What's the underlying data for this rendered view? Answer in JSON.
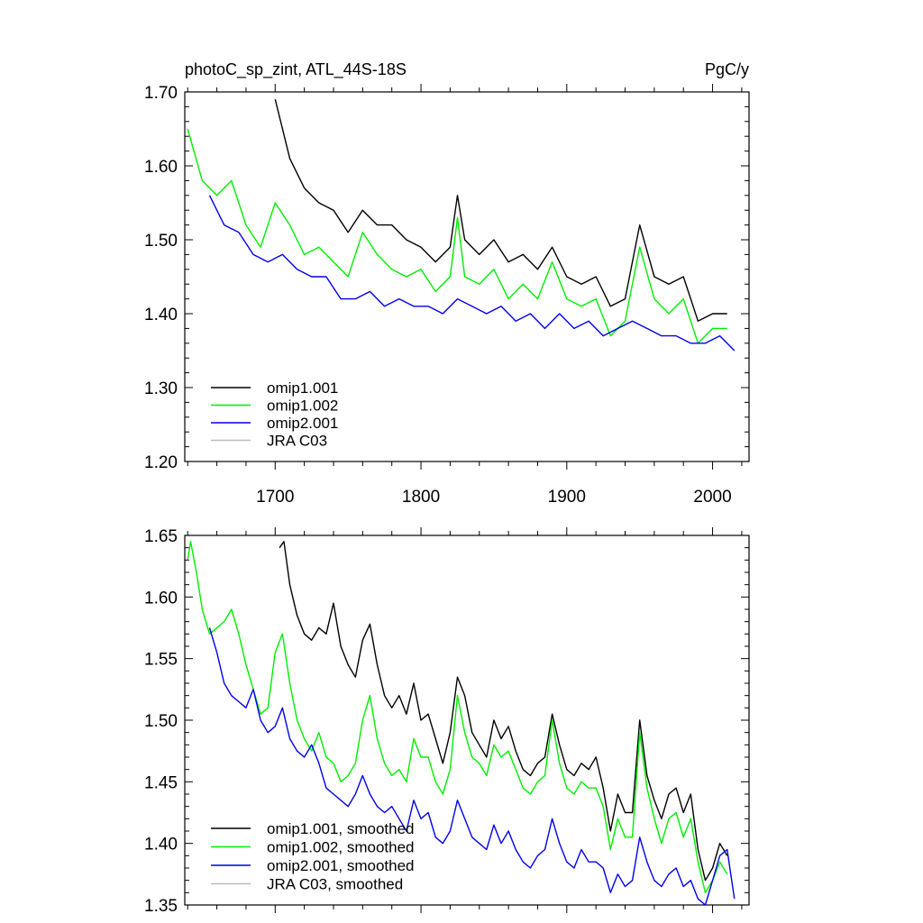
{
  "chart_data": [
    {
      "type": "line",
      "title_left": "photoC_sp_zint, ATL_44S-18S",
      "title_right": "PgC/y",
      "xlabel": "",
      "ylabel": "",
      "xlim": [
        1638,
        2025
      ],
      "ylim": [
        1.2,
        1.7
      ],
      "x_ticks": [
        1700,
        1800,
        1900,
        2000
      ],
      "x_tick_labels": [
        "1700",
        "1800",
        "1900",
        "2000"
      ],
      "y_ticks": [
        1.2,
        1.3,
        1.4,
        1.5,
        1.6,
        1.7
      ],
      "y_tick_labels": [
        "1.20",
        "1.30",
        "1.40",
        "1.50",
        "1.60",
        "1.70"
      ],
      "legend_position": "bottom-left",
      "series": [
        {
          "name": "omip1.001",
          "color": "#000000",
          "x": [
            1700,
            1710,
            1720,
            1730,
            1740,
            1750,
            1760,
            1770,
            1780,
            1790,
            1800,
            1810,
            1820,
            1825,
            1830,
            1840,
            1850,
            1860,
            1870,
            1880,
            1890,
            1900,
            1910,
            1920,
            1930,
            1940,
            1950,
            1960,
            1970,
            1980,
            1990,
            2000,
            2010
          ],
          "y": [
            1.69,
            1.61,
            1.57,
            1.55,
            1.54,
            1.51,
            1.54,
            1.52,
            1.52,
            1.5,
            1.49,
            1.47,
            1.49,
            1.56,
            1.5,
            1.48,
            1.5,
            1.47,
            1.48,
            1.46,
            1.49,
            1.45,
            1.44,
            1.45,
            1.41,
            1.42,
            1.52,
            1.45,
            1.44,
            1.45,
            1.39,
            1.4,
            1.4
          ]
        },
        {
          "name": "omip1.002",
          "color": "#00ee00",
          "x": [
            1640,
            1650,
            1660,
            1670,
            1680,
            1690,
            1700,
            1710,
            1720,
            1730,
            1740,
            1750,
            1760,
            1770,
            1780,
            1790,
            1800,
            1810,
            1820,
            1825,
            1830,
            1840,
            1850,
            1860,
            1870,
            1880,
            1890,
            1900,
            1910,
            1920,
            1930,
            1940,
            1950,
            1960,
            1970,
            1980,
            1990,
            2000,
            2010
          ],
          "y": [
            1.65,
            1.58,
            1.56,
            1.58,
            1.52,
            1.49,
            1.55,
            1.52,
            1.48,
            1.49,
            1.47,
            1.45,
            1.51,
            1.48,
            1.46,
            1.45,
            1.46,
            1.43,
            1.45,
            1.53,
            1.45,
            1.44,
            1.46,
            1.42,
            1.44,
            1.42,
            1.47,
            1.42,
            1.41,
            1.42,
            1.37,
            1.39,
            1.49,
            1.42,
            1.4,
            1.42,
            1.36,
            1.38,
            1.38
          ]
        },
        {
          "name": "omip2.001",
          "color": "#0000ee",
          "x": [
            1655,
            1665,
            1675,
            1685,
            1695,
            1705,
            1715,
            1725,
            1735,
            1745,
            1755,
            1765,
            1775,
            1785,
            1795,
            1805,
            1815,
            1825,
            1835,
            1845,
            1855,
            1865,
            1875,
            1885,
            1895,
            1905,
            1915,
            1925,
            1935,
            1945,
            1955,
            1965,
            1975,
            1985,
            1995,
            2005,
            2015
          ],
          "y": [
            1.56,
            1.52,
            1.51,
            1.48,
            1.47,
            1.48,
            1.46,
            1.45,
            1.45,
            1.42,
            1.42,
            1.43,
            1.41,
            1.42,
            1.41,
            1.41,
            1.4,
            1.42,
            1.41,
            1.4,
            1.41,
            1.39,
            1.4,
            1.38,
            1.4,
            1.38,
            1.39,
            1.37,
            1.38,
            1.39,
            1.38,
            1.37,
            1.37,
            1.36,
            1.36,
            1.37,
            1.35
          ]
        },
        {
          "name": "JRA C03",
          "color": "#bbbbbb",
          "x": [],
          "y": []
        }
      ]
    },
    {
      "type": "line",
      "title_left": "",
      "title_right": "",
      "xlabel": "",
      "ylabel": "",
      "xlim": [
        1638,
        2025
      ],
      "ylim": [
        1.35,
        1.65
      ],
      "x_ticks": [
        1700,
        1800,
        1900,
        2000
      ],
      "x_tick_labels": [],
      "y_ticks": [
        1.35,
        1.4,
        1.45,
        1.5,
        1.55,
        1.6,
        1.65
      ],
      "y_tick_labels": [
        "1.35",
        "1.40",
        "1.45",
        "1.50",
        "1.55",
        "1.60",
        "1.65"
      ],
      "legend_position": "bottom-left",
      "series": [
        {
          "name": "omip1.001, smoothed",
          "color": "#000000",
          "x": [
            1703,
            1706,
            1710,
            1715,
            1720,
            1725,
            1730,
            1735,
            1740,
            1745,
            1750,
            1755,
            1760,
            1765,
            1770,
            1775,
            1780,
            1785,
            1790,
            1795,
            1800,
            1805,
            1810,
            1815,
            1820,
            1825,
            1830,
            1835,
            1840,
            1845,
            1850,
            1855,
            1860,
            1865,
            1870,
            1875,
            1880,
            1885,
            1890,
            1895,
            1900,
            1905,
            1910,
            1915,
            1920,
            1925,
            1930,
            1935,
            1940,
            1945,
            1950,
            1955,
            1960,
            1965,
            1970,
            1975,
            1980,
            1985,
            1990,
            1995,
            2000,
            2005,
            2010
          ],
          "y": [
            1.64,
            1.645,
            1.61,
            1.585,
            1.57,
            1.565,
            1.575,
            1.57,
            1.595,
            1.56,
            1.545,
            1.535,
            1.565,
            1.578,
            1.545,
            1.52,
            1.51,
            1.52,
            1.505,
            1.53,
            1.5,
            1.505,
            1.485,
            1.465,
            1.49,
            1.535,
            1.52,
            1.49,
            1.48,
            1.47,
            1.5,
            1.485,
            1.495,
            1.475,
            1.46,
            1.455,
            1.465,
            1.47,
            1.505,
            1.48,
            1.46,
            1.455,
            1.465,
            1.46,
            1.47,
            1.445,
            1.41,
            1.44,
            1.425,
            1.425,
            1.5,
            1.455,
            1.435,
            1.42,
            1.44,
            1.445,
            1.425,
            1.44,
            1.395,
            1.37,
            1.38,
            1.4,
            1.39
          ]
        },
        {
          "name": "omip1.002, smoothed",
          "color": "#00ee00",
          "x": [
            1640,
            1642,
            1646,
            1650,
            1655,
            1660,
            1665,
            1670,
            1675,
            1680,
            1685,
            1690,
            1695,
            1700,
            1705,
            1710,
            1715,
            1720,
            1725,
            1730,
            1735,
            1740,
            1745,
            1750,
            1755,
            1760,
            1765,
            1770,
            1775,
            1780,
            1785,
            1790,
            1795,
            1800,
            1805,
            1810,
            1815,
            1820,
            1825,
            1830,
            1835,
            1840,
            1845,
            1850,
            1855,
            1860,
            1865,
            1870,
            1875,
            1880,
            1885,
            1890,
            1895,
            1900,
            1905,
            1910,
            1915,
            1920,
            1925,
            1930,
            1935,
            1940,
            1945,
            1950,
            1955,
            1960,
            1965,
            1970,
            1975,
            1980,
            1985,
            1990,
            1995,
            2000,
            2005,
            2010
          ],
          "y": [
            1.63,
            1.645,
            1.62,
            1.59,
            1.57,
            1.575,
            1.58,
            1.59,
            1.57,
            1.545,
            1.525,
            1.505,
            1.51,
            1.555,
            1.57,
            1.53,
            1.5,
            1.485,
            1.475,
            1.49,
            1.47,
            1.465,
            1.45,
            1.455,
            1.465,
            1.5,
            1.52,
            1.485,
            1.465,
            1.455,
            1.46,
            1.45,
            1.485,
            1.47,
            1.47,
            1.45,
            1.44,
            1.46,
            1.52,
            1.49,
            1.47,
            1.465,
            1.455,
            1.48,
            1.47,
            1.475,
            1.46,
            1.445,
            1.44,
            1.45,
            1.455,
            1.5,
            1.465,
            1.445,
            1.44,
            1.45,
            1.445,
            1.445,
            1.43,
            1.395,
            1.42,
            1.405,
            1.405,
            1.49,
            1.445,
            1.42,
            1.4,
            1.42,
            1.425,
            1.405,
            1.42,
            1.385,
            1.36,
            1.37,
            1.385,
            1.375
          ]
        },
        {
          "name": "omip2.001, smoothed",
          "color": "#0000ee",
          "x": [
            1655,
            1660,
            1665,
            1670,
            1675,
            1680,
            1685,
            1690,
            1695,
            1700,
            1705,
            1710,
            1715,
            1720,
            1725,
            1730,
            1735,
            1740,
            1745,
            1750,
            1755,
            1760,
            1765,
            1770,
            1775,
            1780,
            1785,
            1790,
            1795,
            1800,
            1805,
            1810,
            1815,
            1820,
            1825,
            1830,
            1835,
            1840,
            1845,
            1850,
            1855,
            1860,
            1865,
            1870,
            1875,
            1880,
            1885,
            1890,
            1895,
            1900,
            1905,
            1910,
            1915,
            1920,
            1925,
            1930,
            1935,
            1940,
            1945,
            1950,
            1955,
            1960,
            1965,
            1970,
            1975,
            1980,
            1985,
            1990,
            1995,
            2000,
            2005,
            2010,
            2015
          ],
          "y": [
            1.575,
            1.555,
            1.53,
            1.52,
            1.515,
            1.51,
            1.525,
            1.5,
            1.49,
            1.495,
            1.51,
            1.485,
            1.475,
            1.47,
            1.48,
            1.465,
            1.445,
            1.44,
            1.435,
            1.43,
            1.44,
            1.455,
            1.44,
            1.43,
            1.425,
            1.43,
            1.42,
            1.41,
            1.435,
            1.42,
            1.425,
            1.405,
            1.4,
            1.41,
            1.435,
            1.42,
            1.405,
            1.4,
            1.395,
            1.415,
            1.4,
            1.41,
            1.395,
            1.385,
            1.38,
            1.39,
            1.395,
            1.42,
            1.4,
            1.385,
            1.38,
            1.395,
            1.385,
            1.385,
            1.38,
            1.36,
            1.375,
            1.365,
            1.37,
            1.405,
            1.385,
            1.37,
            1.365,
            1.375,
            1.38,
            1.365,
            1.37,
            1.355,
            1.35,
            1.37,
            1.39,
            1.395,
            1.355
          ]
        },
        {
          "name": "JRA C03, smoothed",
          "color": "#bbbbbb",
          "x": [],
          "y": []
        }
      ]
    }
  ]
}
